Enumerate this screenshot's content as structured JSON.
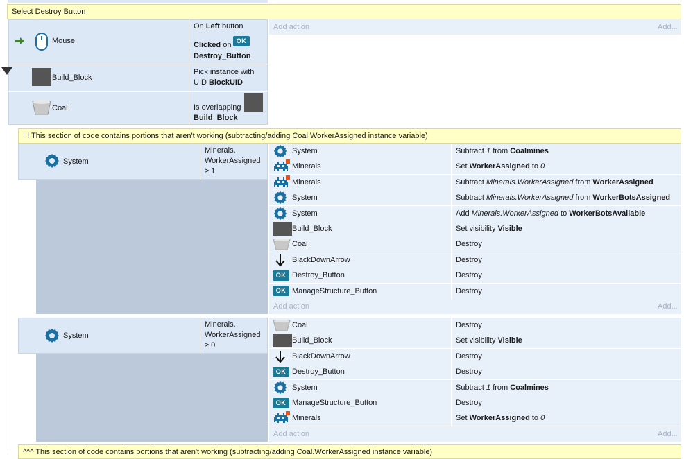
{
  "event": {
    "title": "Select Destroy Button",
    "conditions": [
      {
        "object": "Mouse",
        "icon": "mouse-icon",
        "line1_pre": "On ",
        "line1_bold": "Left",
        "line1_post": " button",
        "line2_bold": "Clicked",
        "line2_post": " on",
        "line3_bold": "Destroy_Button"
      },
      {
        "object": "Build_Block",
        "icon": "build-block-sprite",
        "line1": "Pick instance with",
        "line2_pre": "UID ",
        "line2_bold": "BlockUID"
      },
      {
        "object": "Coal",
        "icon": "coal-cart-icon",
        "line1": "Is overlapping",
        "line2_bold": "Build_Block"
      }
    ],
    "add_action": "Add action",
    "add_link": "Add..."
  },
  "comment_top": "!!!  This section of code contains portions that aren't working (subtracting/adding Coal.WorkerAssigned instance variable)",
  "comment_bottom": "^^^  This section of code contains portions that aren't working (subtracting/adding Coal.WorkerAssigned instance variable)",
  "sub1": {
    "object": "System",
    "cond_line1": "Minerals.",
    "cond_line2": "WorkerAssigned",
    "cond_line3": "≥ 1",
    "actions": [
      {
        "object": "System",
        "icon": "gear-icon",
        "a": "Subtract ",
        "b_i": "1",
        "c": " from ",
        "d_b": "Coalmines"
      },
      {
        "object": "Minerals",
        "icon": "invader-icon",
        "a": "Set ",
        "b_b": "WorkerAssigned",
        "c": " to ",
        "d_i": "0"
      },
      {
        "object": "Minerals",
        "icon": "invader-icon",
        "a": "Subtract ",
        "b_i": "Minerals.WorkerAssigned",
        "c": " from ",
        "d_b": "WorkerAssigned"
      },
      {
        "object": "System",
        "icon": "gear-icon",
        "a": "Subtract ",
        "b_i": "Minerals.WorkerAssigned",
        "c": " from ",
        "d_b": "WorkerBotsAssigned"
      },
      {
        "object": "System",
        "icon": "gear-icon",
        "a": "Add ",
        "b_i": "Minerals.WorkerAssigned",
        "c": " to ",
        "d_b": "WorkerBotsAvailable"
      },
      {
        "object": "Build_Block",
        "icon": "build-block-sprite",
        "a": "Set visibility ",
        "d_b": "Visible"
      },
      {
        "object": "Coal",
        "icon": "coal-cart-icon",
        "a": "Destroy"
      },
      {
        "object": "BlackDownArrow",
        "icon": "down-arrow-icon",
        "a": "Destroy"
      },
      {
        "object": "Destroy_Button",
        "icon": "ok-button-icon",
        "a": "Destroy"
      },
      {
        "object": "ManageStructure_Button",
        "icon": "ok-button-icon",
        "a": "Destroy"
      }
    ]
  },
  "sub2": {
    "object": "System",
    "cond_line1": "Minerals.",
    "cond_line2": "WorkerAssigned",
    "cond_line3": "≥ 0",
    "actions": [
      {
        "object": "Coal",
        "icon": "coal-cart-icon",
        "a": "Destroy"
      },
      {
        "object": "Build_Block",
        "icon": "build-block-sprite",
        "a": "Set visibility ",
        "d_b": "Visible"
      },
      {
        "object": "BlackDownArrow",
        "icon": "down-arrow-icon",
        "a": "Destroy"
      },
      {
        "object": "Destroy_Button",
        "icon": "ok-button-icon",
        "a": "Destroy"
      },
      {
        "object": "System",
        "icon": "gear-icon",
        "a": "Subtract ",
        "b_i": "1",
        "c": " from ",
        "d_b": "Coalmines"
      },
      {
        "object": "ManageStructure_Button",
        "icon": "ok-button-icon",
        "a": "Destroy"
      },
      {
        "object": "Minerals",
        "icon": "invader-icon",
        "a": "Set ",
        "b_b": "WorkerAssigned",
        "c": " to ",
        "d_i": "0"
      }
    ]
  },
  "ok_label": "OK",
  "colors": {
    "banner": "#ffffc6",
    "condition_bg": "#dce8f5",
    "action_bg": "#e8f0fa",
    "sub_bg": "#bcc9da",
    "ok": "#1a7a98",
    "arrow": "#3a8a2a"
  }
}
